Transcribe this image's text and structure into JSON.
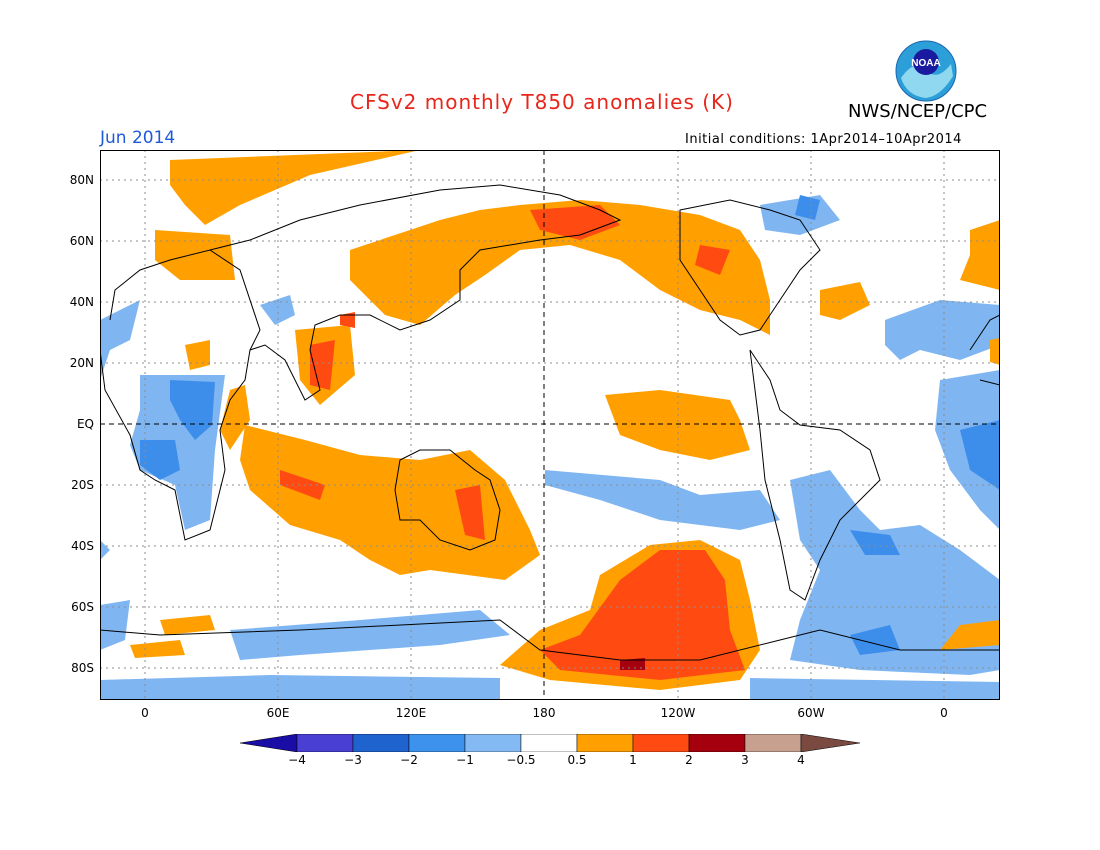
{
  "title": "CFSv2 monthly T850 anomalies (K)",
  "agency": "NWS/NCEP/CPC",
  "month": "Jun 2014",
  "initial_conditions": "Initial conditions: 1Apr2014–10Apr2014",
  "logo_text": "NOAA",
  "lat_labels": [
    "80N",
    "60N",
    "40N",
    "20N",
    "EQ",
    "20S",
    "40S",
    "60S",
    "80S"
  ],
  "lon_labels": [
    "0",
    "60E",
    "120E",
    "180",
    "120W",
    "60W",
    "0"
  ],
  "colorbar": {
    "labels": [
      "−4",
      "−3",
      "−2",
      "−1",
      "−0.5",
      "0.5",
      "1",
      "2",
      "3",
      "4"
    ],
    "colors": [
      "#1a0da6",
      "#4a3fd3",
      "#1f63cf",
      "#3c92ec",
      "#84baf3",
      "#ffffff",
      "#ffa000",
      "#ff4b12",
      "#a5000e",
      "#c8a090",
      "#7a4a40"
    ]
  }
}
